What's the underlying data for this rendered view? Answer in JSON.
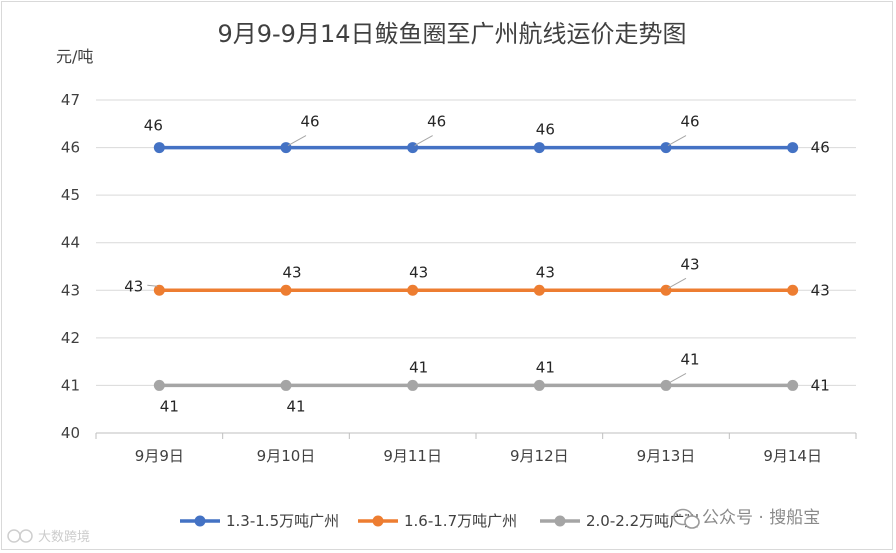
{
  "chart_data": {
    "type": "line",
    "title": "9月9-9月14日鲅鱼圈至广州航线运价走势图",
    "ylabel": "元/吨",
    "xlabel": "",
    "categories": [
      "9月9日",
      "9月10日",
      "9月11日",
      "9月12日",
      "9月13日",
      "9月14日"
    ],
    "ylim": [
      40,
      47
    ],
    "yticks": [
      40,
      41,
      42,
      43,
      44,
      45,
      46,
      47
    ],
    "grid": true,
    "legend_position": "bottom",
    "series": [
      {
        "name": "1.3-1.5万吨广州",
        "color": "#4472C4",
        "values": [
          46,
          46,
          46,
          46,
          46,
          46
        ]
      },
      {
        "name": "1.6-1.7万吨广州",
        "color": "#ED7D31",
        "values": [
          43,
          43,
          43,
          43,
          43,
          43
        ]
      },
      {
        "name": "2.0-2.2万吨广州",
        "color": "#A5A5A5",
        "values": [
          41,
          41,
          41,
          41,
          41,
          41
        ]
      }
    ]
  },
  "watermark": {
    "text": "公众号 · 搜船宝",
    "icon": "wechat-icon",
    "corner_text": "大数跨境"
  }
}
